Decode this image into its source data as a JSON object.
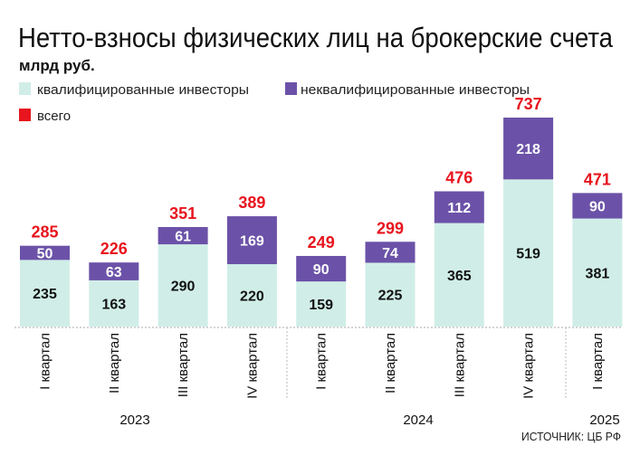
{
  "chart_data": {
    "type": "bar",
    "stacked": true,
    "title": "Нетто-взносы физических лиц на брокерские счета",
    "subtitle": "млрд руб.",
    "source": "ИСТОЧНИК: ЦБ РФ",
    "legend": {
      "placement": "top-left",
      "entries": [
        "квалифицированные инвесторы",
        "неквалифицированные инвесторы",
        "всего"
      ]
    },
    "categories": [
      "I квартал",
      "II квартал",
      "III квартал",
      "IV квартал",
      "I квартал",
      "II квартал",
      "III квартал",
      "IV квартал",
      "I квартал"
    ],
    "years": [
      {
        "label": "2023",
        "quarters": 4
      },
      {
        "label": "2024",
        "quarters": 4
      },
      {
        "label": "2025",
        "quarters": 1
      }
    ],
    "series": [
      {
        "name": "квалифицированные инвесторы",
        "color": "#d0eee7",
        "values": [
          235,
          163,
          290,
          220,
          159,
          225,
          365,
          519,
          381
        ]
      },
      {
        "name": "неквалифицированные инвесторы",
        "color": "#6b52a8",
        "values": [
          50,
          63,
          61,
          169,
          90,
          74,
          112,
          218,
          90
        ]
      }
    ],
    "totals": {
      "name": "всего",
      "color": "#e8141e",
      "values": [
        285,
        226,
        351,
        389,
        249,
        299,
        476,
        737,
        471
      ]
    },
    "ylim": [
      0,
      737
    ],
    "grid": false
  }
}
